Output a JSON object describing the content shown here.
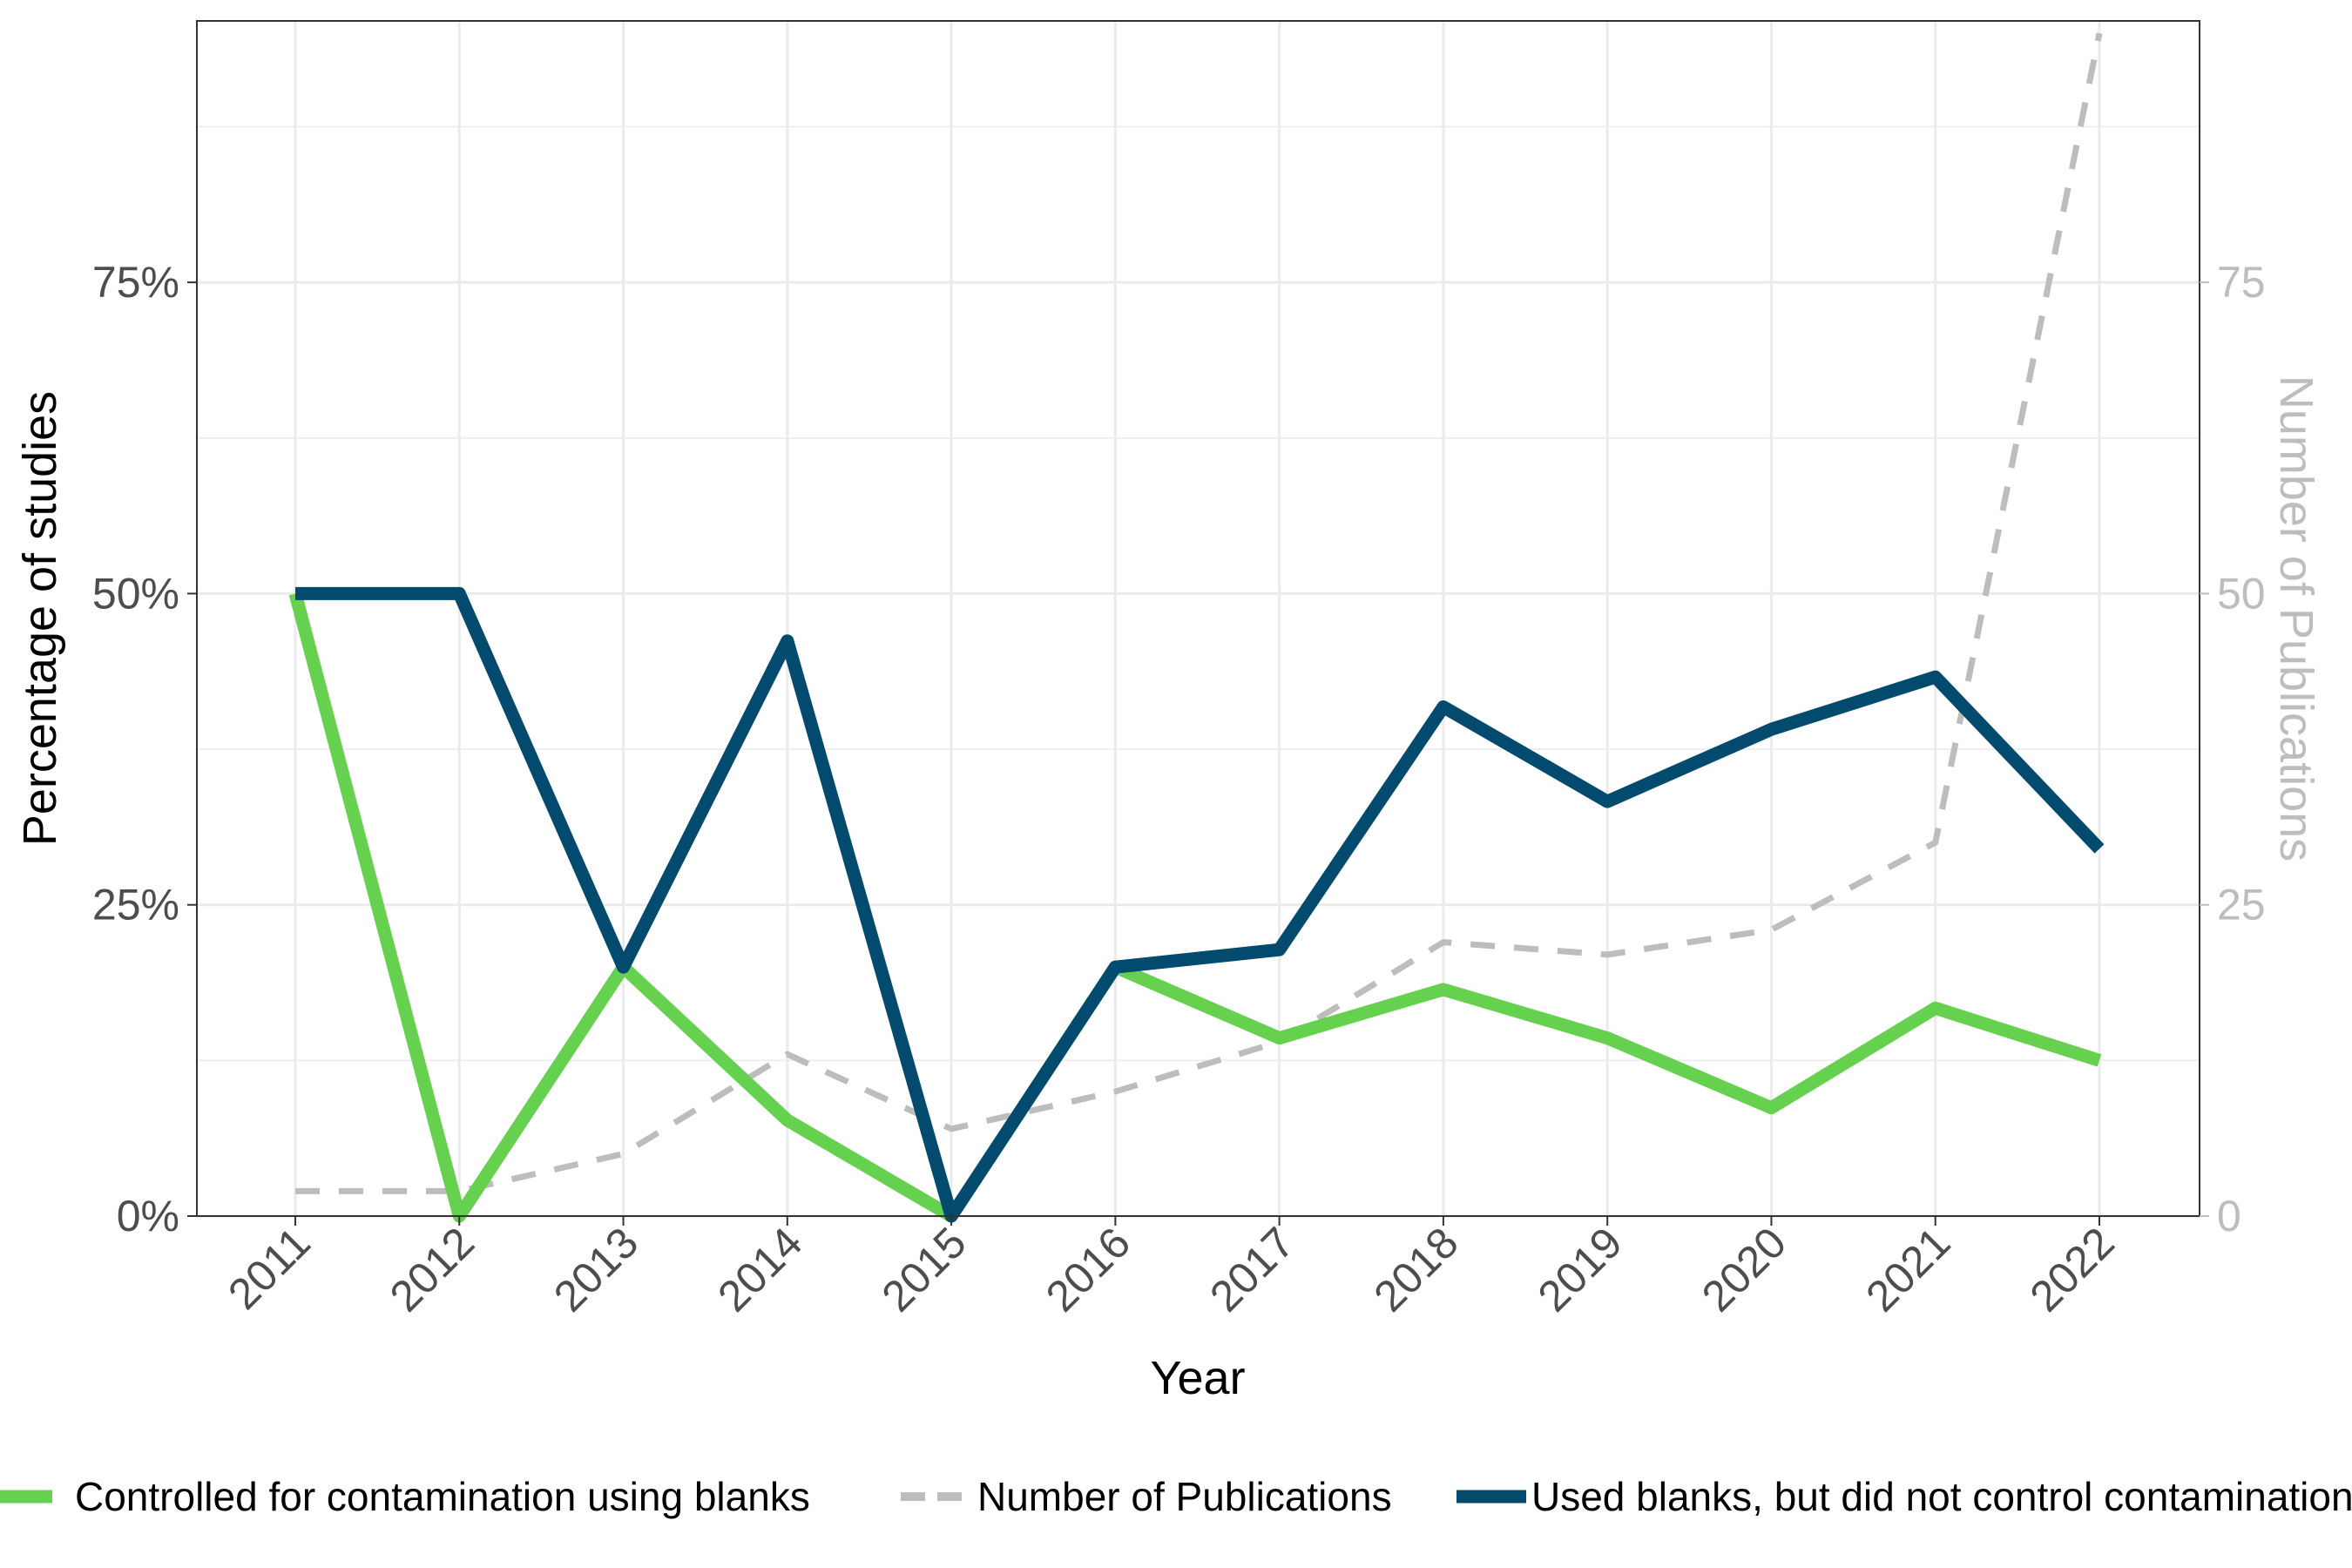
{
  "chart_data": {
    "type": "line",
    "title": "",
    "xlabel": "Year",
    "ylabel": "Percentage of studies",
    "ylabel_right": "Number of Publications",
    "categories": [
      "2011",
      "2012",
      "2013",
      "2014",
      "2015",
      "2016",
      "2017",
      "2018",
      "2019",
      "2020",
      "2021",
      "2022"
    ],
    "y_ticks": [
      "0%",
      "25%",
      "50%",
      "75%"
    ],
    "y_ticks_right": [
      "0",
      "25",
      "50",
      "75"
    ],
    "ylim": [
      0,
      0.96
    ],
    "ylim_right": [
      0,
      96
    ],
    "grid": true,
    "legend_position": "bottom",
    "series": [
      {
        "name": "Controlled for contamination using blanks",
        "axis": "left",
        "color": "#66d14f",
        "style": "solid",
        "values": [
          0.5,
          0.0,
          0.2,
          0.077,
          0.0,
          0.2,
          0.143,
          0.182,
          0.143,
          0.087,
          0.167,
          0.125
        ]
      },
      {
        "name": "Number of Publications",
        "axis": "right",
        "color": "#bdbdbd",
        "style": "dashed",
        "values": [
          2,
          2,
          5,
          13,
          7,
          10,
          14,
          22,
          21,
          23,
          30,
          95
        ]
      },
      {
        "name": "Used blanks, but did not control contamination",
        "axis": "left",
        "color": "#024a6e",
        "style": "solid",
        "values": [
          0.5,
          0.5,
          0.2,
          0.462,
          0.0,
          0.2,
          0.214,
          0.409,
          0.333,
          0.391,
          0.433,
          0.295
        ]
      }
    ]
  }
}
